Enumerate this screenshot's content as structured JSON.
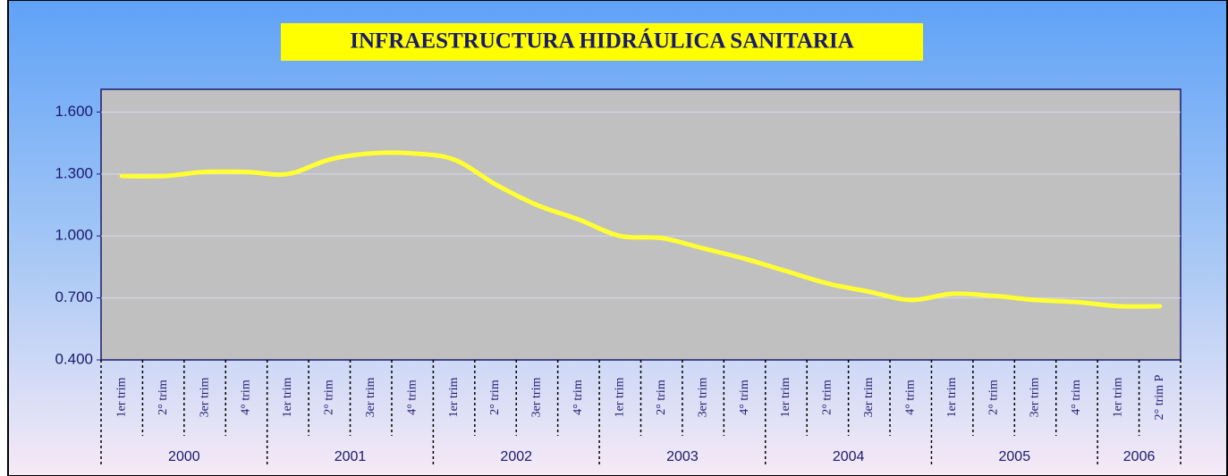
{
  "chart_data": {
    "type": "line",
    "title": "INFRAESTRUCTURA HIDRÁULICA SANITARIA",
    "categories": [
      "1er trim",
      "2° trim",
      "3er trim",
      "4° trim",
      "1er trim",
      "2° trim",
      "3er trim",
      "4° trim",
      "1er trim",
      "2° trim",
      "3er trim",
      "4° trim",
      "1er trim",
      "2° trim",
      "3er trim",
      "4° trim",
      "1er trim",
      "2° trim",
      "3er trim",
      "4° trim",
      "1er trim",
      "2° trim",
      "3er trim",
      "4° trim",
      "1er trim",
      "2° trim P"
    ],
    "category_groups": [
      "2000",
      null,
      null,
      null,
      "2001",
      null,
      null,
      null,
      "2002",
      null,
      null,
      null,
      "2003",
      null,
      null,
      null,
      "2004",
      null,
      null,
      null,
      "2005",
      null,
      null,
      null,
      "2006",
      null
    ],
    "series": [
      {
        "color": "#ffff33",
        "values": [
          1.29,
          1.29,
          1.31,
          1.31,
          1.3,
          1.37,
          1.4,
          1.4,
          1.37,
          1.25,
          1.15,
          1.08,
          1.0,
          0.99,
          0.94,
          0.89,
          0.83,
          0.77,
          0.73,
          0.69,
          0.72,
          0.71,
          0.69,
          0.68,
          0.66,
          0.66
        ]
      }
    ],
    "ylim": [
      0.4,
      1.71
    ],
    "yticks": [
      {
        "value": 0.4,
        "label": "0.400"
      },
      {
        "value": 0.7,
        "label": "0.700"
      },
      {
        "value": 1.0,
        "label": "1.000"
      },
      {
        "value": 1.3,
        "label": "1.300"
      },
      {
        "value": 1.6,
        "label": "1.600"
      }
    ],
    "grid": true
  }
}
